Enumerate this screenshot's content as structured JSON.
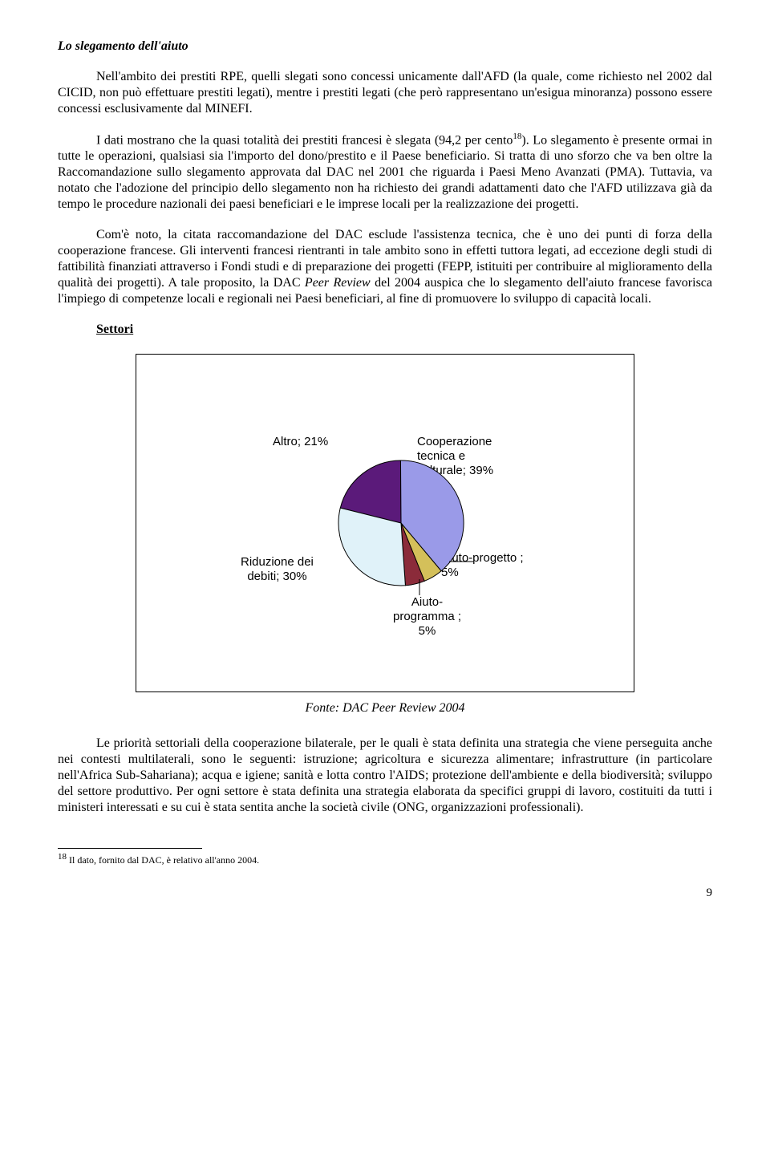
{
  "heading": "Lo slegamento dell'aiuto",
  "para1": "Nell'ambito dei prestiti RPE, quelli slegati sono concessi unicamente dall'AFD (la quale, come richiesto nel 2002 dal CICID, non può effettuare prestiti legati), mentre i prestiti legati (che però rappresentano un'esigua minoranza) possono essere concessi esclusivamente dal MINEFI.",
  "para2a": "I dati mostrano che la quasi totalità dei prestiti francesi è slegata (94,2 per cento",
  "para2sup": "18",
  "para2b": "). Lo slegamento è presente ormai in tutte le operazioni, qualsiasi sia l'importo del dono/prestito e il Paese beneficiario. Si tratta di uno sforzo che va ben oltre la Raccomandazione sullo slegamento approvata dal DAC nel 2001 che riguarda i Paesi Meno Avanzati (PMA). Tuttavia, va notato che l'adozione del principio dello slegamento non ha richiesto dei grandi adattamenti dato che l'AFD utilizzava già da tempo le procedure nazionali dei paesi beneficiari e le imprese locali per la realizzazione dei progetti.",
  "para3": "Com'è noto, la citata raccomandazione del DAC esclude l'assistenza tecnica, che è uno dei punti di forza della cooperazione francese. Gli interventi francesi rientranti in tale ambito sono in effetti tuttora legati, ad eccezione degli studi di fattibilità finanziati attraverso i Fondi studi e di preparazione dei progetti (FEPP, istituiti per contribuire al miglioramento della qualità dei progetti). A tale proposito, la DAC Peer Review del 2004 auspica che lo slegamento dell'aiuto francese favorisca l'impiego di competenze locali e regionali nei Paesi beneficiari, al fine di promuovere lo sviluppo di capacità locali.",
  "section": "Settori",
  "chart": {
    "type": "pie",
    "labels": {
      "altro": "Altro; 21%",
      "cooperazione_l1": "Cooperazione",
      "cooperazione_l2": "tecnica e",
      "cooperazione_l3": "culturale; 39%",
      "riduzione_l1": "Riduzione dei",
      "riduzione_l2": "debiti; 30%",
      "aiuto_progetto_l1": "Aiuto-progetto ;",
      "aiuto_progetto_l2": "5%",
      "aiuto_programma_l1": "Aiuto-",
      "aiuto_programma_l2": "programma ;",
      "aiuto_programma_l3": "5%"
    },
    "slices": [
      {
        "name": "Altro",
        "value": 21,
        "color": "#5b1a7a"
      },
      {
        "name": "Cooperazione tecnica e culturale",
        "value": 39,
        "color": "#9a9ae8"
      },
      {
        "name": "Aiuto-progetto",
        "value": 5,
        "color": "#d4c05a"
      },
      {
        "name": "Aiuto-programma",
        "value": 5,
        "color": "#8b2b3a"
      },
      {
        "name": "Riduzione dei debiti",
        "value": 30,
        "color": "#e0f2f9"
      }
    ],
    "outline_color": "#000000",
    "label_font": "Arial",
    "label_fontsize": 15,
    "background_color": "#ffffff",
    "start_angle_deg": -166
  },
  "caption": "Fonte: DAC Peer Review 2004",
  "para4": "Le priorità settoriali della cooperazione bilaterale, per le quali è stata definita una strategia che viene perseguita anche nei contesti multilaterali, sono le seguenti: istruzione; agricoltura e sicurezza alimentare; infrastrutture (in particolare nell'Africa Sub-Sahariana); acqua e igiene; sanità e lotta contro l'AIDS; protezione dell'ambiente e della biodiversità; sviluppo del settore produttivo. Per ogni settore è stata definita una strategia elaborata da specifici gruppi di lavoro, costituiti da tutti i ministeri interessati e su cui è stata sentita anche la società civile (ONG, organizzazioni professionali).",
  "footnote_num": "18",
  "footnote_text": " Il dato, fornito dal DAC, è relativo all'anno 2004.",
  "pagenum": "9"
}
